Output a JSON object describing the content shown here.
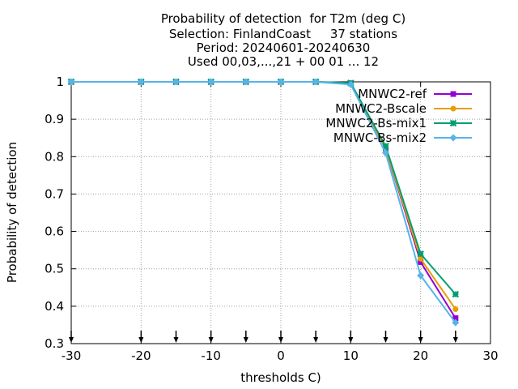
{
  "chart_data": {
    "type": "line",
    "title": [
      "Probability of detection  for T2m (deg C)",
      "Selection: FinlandCoast     37 stations",
      "Period: 20240601-20240630",
      "Used 00,03,...,21 + 00 01 ... 12"
    ],
    "xlabel": "thresholds C)",
    "ylabel": "Probability of detection",
    "xlim": [
      -30,
      30
    ],
    "ylim": [
      0.3,
      1
    ],
    "xticks": [
      -30,
      -20,
      -10,
      0,
      10,
      20,
      30
    ],
    "yticks": [
      0.3,
      0.4,
      0.5,
      0.6,
      0.7,
      0.8,
      0.9,
      1
    ],
    "ytick_labels": [
      "0.3",
      "0.4",
      "0.5",
      "0.6",
      "0.7",
      "0.8",
      "0.9",
      "1"
    ],
    "grid": true,
    "legend_position": "top-right",
    "sample_count_arrows_x": [
      -30,
      -20,
      -15,
      -10,
      -5,
      0,
      5,
      10,
      15,
      20,
      25
    ],
    "x": [
      -30,
      -20,
      -15,
      -10,
      -5,
      0,
      5,
      10,
      15,
      20,
      25
    ],
    "series": [
      {
        "name": "MNWC2-ref",
        "color": "#9400d3",
        "marker": "square",
        "values": [
          1,
          1,
          1,
          1,
          1,
          1,
          1,
          0.996,
          0.822,
          0.518,
          0.368
        ]
      },
      {
        "name": "MNWC2-Bscale",
        "color": "#e69f00",
        "marker": "circle",
        "values": [
          1,
          1,
          1,
          1,
          1,
          1,
          1,
          0.996,
          0.823,
          0.527,
          0.392
        ]
      },
      {
        "name": "MNWC2-Bs-mix1",
        "color": "#009e73",
        "marker": "cross",
        "values": [
          1,
          1,
          1,
          1,
          1,
          1,
          1,
          0.997,
          0.828,
          0.54,
          0.432
        ]
      },
      {
        "name": "MNWC-Bs-mix2",
        "color": "#56b4e9",
        "marker": "diamond",
        "values": [
          1,
          1,
          1,
          1,
          1,
          1,
          1,
          0.993,
          0.81,
          0.482,
          0.356
        ]
      }
    ]
  }
}
